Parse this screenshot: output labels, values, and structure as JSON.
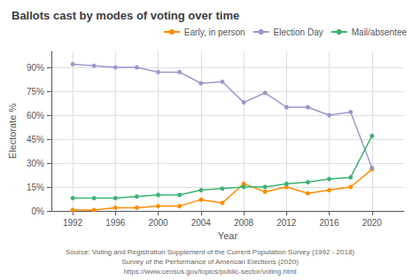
{
  "chart_data": {
    "type": "line",
    "title": "Ballots cast by modes of voting over time",
    "xlabel": "Year",
    "ylabel": "Electorate %",
    "annotations": [
      "Source: Voting and Registration Supplement of the Current Population Survey (1992 - 2018)\nSurvey of the Performance of American Elections (2020)\nhttps://www.census.gov/topics/public-sector/voting.html"
    ],
    "x": [
      1992,
      1994,
      1996,
      1998,
      2000,
      2002,
      2004,
      2006,
      2008,
      2010,
      2012,
      2014,
      2016,
      2018,
      2020
    ],
    "series": [
      {
        "name": "Early, in person",
        "color": "#FF8C00",
        "values": [
          0.5,
          0.5,
          2,
          2,
          3,
          3,
          7,
          5,
          17,
          12,
          15,
          11,
          13,
          15,
          26
        ]
      },
      {
        "name": "Election Day",
        "color": "#9999cc",
        "values": [
          92,
          91,
          90,
          90,
          87,
          87,
          80,
          81,
          68,
          74,
          65,
          65,
          60,
          62,
          27
        ]
      },
      {
        "name": "Mail/absentee",
        "color": "#3cb371",
        "values": [
          8,
          8,
          8,
          9,
          10,
          10,
          13,
          14,
          15,
          15,
          17,
          18,
          20,
          21,
          47
        ]
      }
    ],
    "marker": "circle",
    "xlim": [
      1990,
      2023
    ],
    "xticks": [
      1992,
      1996,
      2000,
      2004,
      2008,
      2012,
      2016,
      2020
    ],
    "ylim": [
      0,
      100
    ],
    "yticks": [
      {
        "value": 0,
        "label": "0%"
      },
      {
        "value": 15,
        "label": "15%"
      },
      {
        "value": 30,
        "label": "30%"
      },
      {
        "value": 45,
        "label": "45%"
      },
      {
        "value": 60,
        "label": "60%"
      },
      {
        "value": 75,
        "label": "75%"
      },
      {
        "value": 90,
        "label": "90%"
      }
    ],
    "grid": true,
    "legend": "right"
  }
}
